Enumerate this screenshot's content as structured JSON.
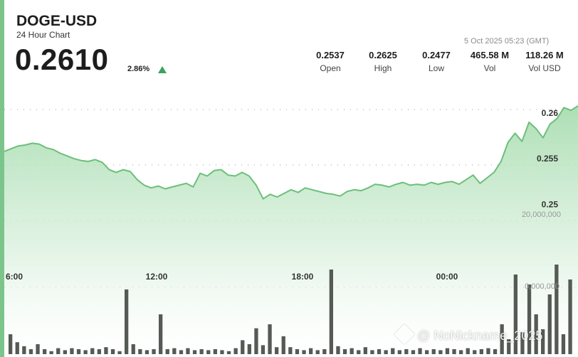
{
  "header": {
    "symbol": "DOGE-USD",
    "subtitle": "24 Hour Chart",
    "price": "0.2610",
    "change_pct": "2.86%",
    "timestamp": "5 Oct 2025 05:23 (GMT)"
  },
  "stats": [
    {
      "value": "0.2537",
      "label": "Open"
    },
    {
      "value": "0.2625",
      "label": "High"
    },
    {
      "value": "0.2477",
      "label": "Low"
    },
    {
      "value": "465.58 M",
      "label": "Vol"
    },
    {
      "value": "118.26 M",
      "label": "Vol USD"
    }
  ],
  "watermark": "@ NoNickname_2025",
  "colors": {
    "line": "#6cbf7a",
    "area_top": "#9fd9a8",
    "volume": "#555a55",
    "accent": "#3aa35a"
  },
  "chart_data": {
    "type": "area",
    "x_ticks": [
      "6:00",
      "12:00",
      "18:00",
      "00:00"
    ],
    "y_ticks": [
      "0.26",
      "0.255",
      "0.25"
    ],
    "volume_ticks": [
      "20,000,000",
      "0,000,000"
    ],
    "ylim": [
      0.2455,
      0.2632
    ],
    "grid": true,
    "price": [
      0.2558,
      0.2561,
      0.2564,
      0.2565,
      0.2567,
      0.2566,
      0.2562,
      0.256,
      0.2556,
      0.2553,
      0.255,
      0.2548,
      0.2547,
      0.2549,
      0.2546,
      0.2538,
      0.2535,
      0.2538,
      0.2536,
      0.2527,
      0.2521,
      0.2518,
      0.252,
      0.2517,
      0.2519,
      0.2521,
      0.2523,
      0.2519,
      0.2534,
      0.2531,
      0.2537,
      0.2538,
      0.2532,
      0.2531,
      0.2535,
      0.2531,
      0.2521,
      0.2506,
      0.2511,
      0.2508,
      0.2512,
      0.2516,
      0.2513,
      0.2518,
      0.2516,
      0.2514,
      0.2512,
      0.2511,
      0.2509,
      0.2514,
      0.2516,
      0.2515,
      0.2518,
      0.2522,
      0.2521,
      0.2519,
      0.2522,
      0.2524,
      0.2521,
      0.2522,
      0.2521,
      0.2524,
      0.2522,
      0.2524,
      0.2525,
      0.2522,
      0.2527,
      0.2532,
      0.2523,
      0.2529,
      0.2535,
      0.2547,
      0.2568,
      0.2578,
      0.2569,
      0.259,
      0.2583,
      0.2573,
      0.2588,
      0.2594,
      0.2606,
      0.2603,
      0.2608
    ],
    "volume": [
      0.2,
      0.12,
      0.08,
      0.05,
      0.1,
      0.05,
      0.03,
      0.06,
      0.04,
      0.06,
      0.05,
      0.04,
      0.06,
      0.05,
      0.07,
      0.05,
      0.03,
      0.65,
      0.1,
      0.05,
      0.04,
      0.05,
      0.4,
      0.05,
      0.06,
      0.04,
      0.06,
      0.04,
      0.05,
      0.04,
      0.05,
      0.04,
      0.03,
      0.06,
      0.14,
      0.1,
      0.26,
      0.09,
      0.3,
      0.07,
      0.18,
      0.07,
      0.05,
      0.04,
      0.06,
      0.04,
      0.05,
      0.85,
      0.08,
      0.05,
      0.06,
      0.04,
      0.07,
      0.04,
      0.05,
      0.04,
      0.06,
      0.04,
      0.05,
      0.04,
      0.06,
      0.04,
      0.05,
      0.04,
      0.06,
      0.05,
      0.04,
      0.06,
      0.04,
      0.05,
      0.06,
      0.05,
      0.3,
      0.15,
      0.8,
      0.22,
      0.7,
      0.4,
      0.25,
      0.6,
      0.9,
      0.2,
      0.75
    ]
  }
}
